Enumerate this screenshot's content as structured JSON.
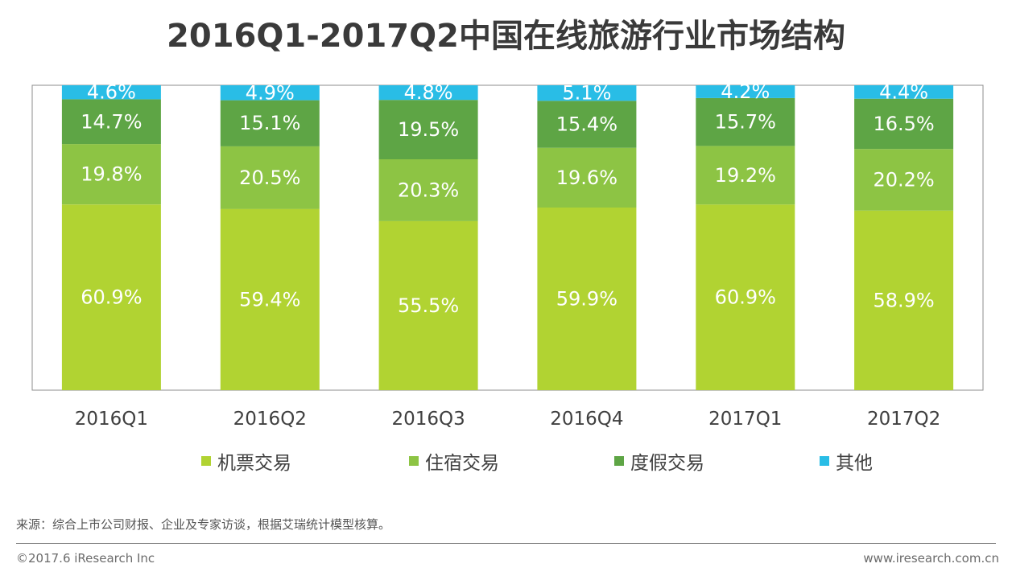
{
  "title": "2016Q1-2017Q2中国在线旅游行业市场结构",
  "chart_data": {
    "type": "bar",
    "stacked": true,
    "title": "2016Q1-2017Q2中国在线旅游行业市场结构",
    "categories": [
      "2016Q1",
      "2016Q2",
      "2016Q3",
      "2016Q4",
      "2017Q1",
      "2017Q2"
    ],
    "series": [
      {
        "name": "机票交易",
        "color": "#b1d332",
        "values": [
          60.9,
          59.4,
          55.5,
          59.9,
          60.9,
          58.9
        ],
        "labels": [
          "60.9%",
          "59.4%",
          "55.5%",
          "59.9%",
          "60.9%",
          "58.9%"
        ]
      },
      {
        "name": "住宿交易",
        "color": "#8dc444",
        "values": [
          19.8,
          20.5,
          20.3,
          19.6,
          19.2,
          20.2
        ],
        "labels": [
          "19.8%",
          "20.5%",
          "20.3%",
          "19.6%",
          "19.2%",
          "20.2%"
        ]
      },
      {
        "name": "度假交易",
        "color": "#5ea545",
        "values": [
          14.7,
          15.1,
          19.5,
          15.4,
          15.7,
          16.5
        ],
        "labels": [
          "14.7%",
          "15.1%",
          "19.5%",
          "15.4%",
          "15.7%",
          "16.5%"
        ]
      },
      {
        "name": "其他",
        "color": "#29bde6",
        "values": [
          4.6,
          4.9,
          4.8,
          5.1,
          4.2,
          4.4
        ],
        "labels": [
          "4.6%",
          "4.9%",
          "4.8%",
          "5.1%",
          "4.2%",
          "4.4%"
        ]
      }
    ],
    "ylim": [
      0,
      100
    ],
    "xlabel": "",
    "ylabel": "",
    "legend_position": "bottom"
  },
  "source": "来源：综合上市公司财报、企业及专家访谈，根据艾瑞统计模型核算。",
  "footer": {
    "copyright": "©2017.6 iResearch Inc",
    "website": "www.iresearch.com.cn"
  }
}
